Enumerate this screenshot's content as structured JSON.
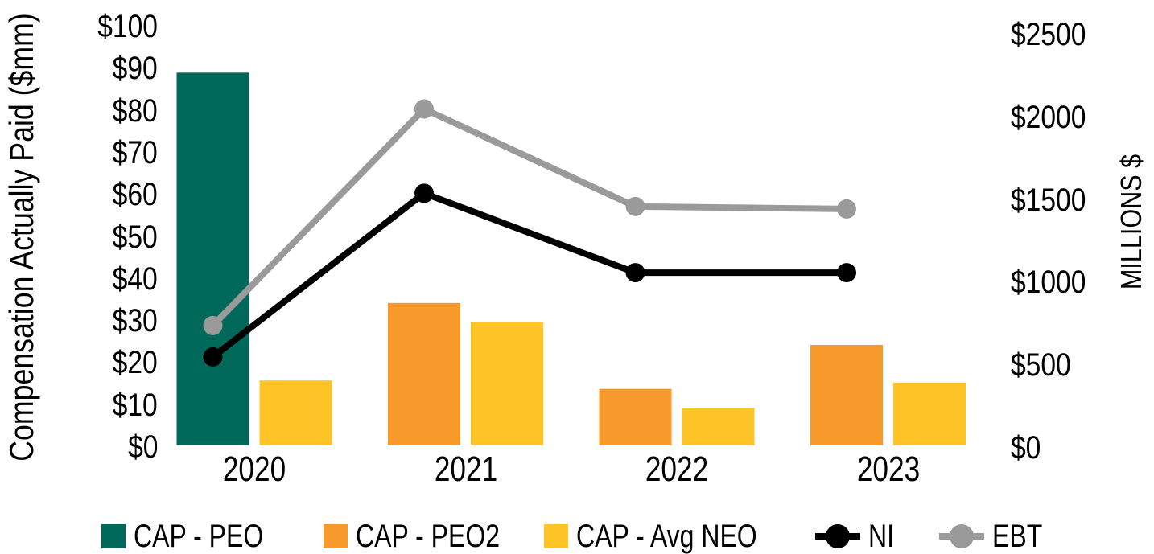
{
  "chart_data": {
    "type": "combo: clustered bars + line series, dual y-axes, no gridlines",
    "categories": [
      "2020",
      "2021",
      "2022",
      "2023"
    ],
    "bar_series": [
      {
        "name": "CAP - PEO",
        "axis": "left",
        "color": "#00695A",
        "values": [
          89,
          null,
          null,
          null
        ]
      },
      {
        "name": "CAP - PEO2",
        "axis": "left",
        "color": "#F8992B",
        "values": [
          null,
          34,
          13.5,
          24
        ]
      },
      {
        "name": "CAP - Avg NEO",
        "axis": "left",
        "color": "#FFC425",
        "values": [
          15.5,
          29.5,
          9,
          15
        ]
      }
    ],
    "line_series": [
      {
        "name": "NI",
        "axis": "right",
        "color": "#000000",
        "marker": "circle",
        "values": [
          550,
          1540,
          1060,
          1060
        ]
      },
      {
        "name": "EBT",
        "axis": "right",
        "color": "#9A9A9A",
        "marker": "circle",
        "values": [
          740,
          2050,
          1460,
          1445
        ]
      }
    ],
    "left_axis": {
      "title": "Compensation Actually Paid ($mm)",
      "min": 0,
      "max": 100,
      "step": 10,
      "tick_labels": [
        "$0",
        "$10",
        "$20",
        "$30",
        "$40",
        "$50",
        "$60",
        "$70",
        "$80",
        "$90",
        "$100"
      ]
    },
    "right_axis": {
      "title": "MILLIONS $",
      "min": 0,
      "max": 2500,
      "step": 500,
      "tick_labels": [
        "$0",
        "$500",
        "$1000",
        "$1500",
        "$2000",
        "$2500"
      ]
    },
    "legend": {
      "position": "bottom",
      "items": [
        "CAP - PEO",
        "CAP - PEO2",
        "CAP - Avg NEO",
        "NI",
        "EBT"
      ]
    },
    "grid": false,
    "background": "#FFFFFF",
    "text_color": "#000000"
  }
}
